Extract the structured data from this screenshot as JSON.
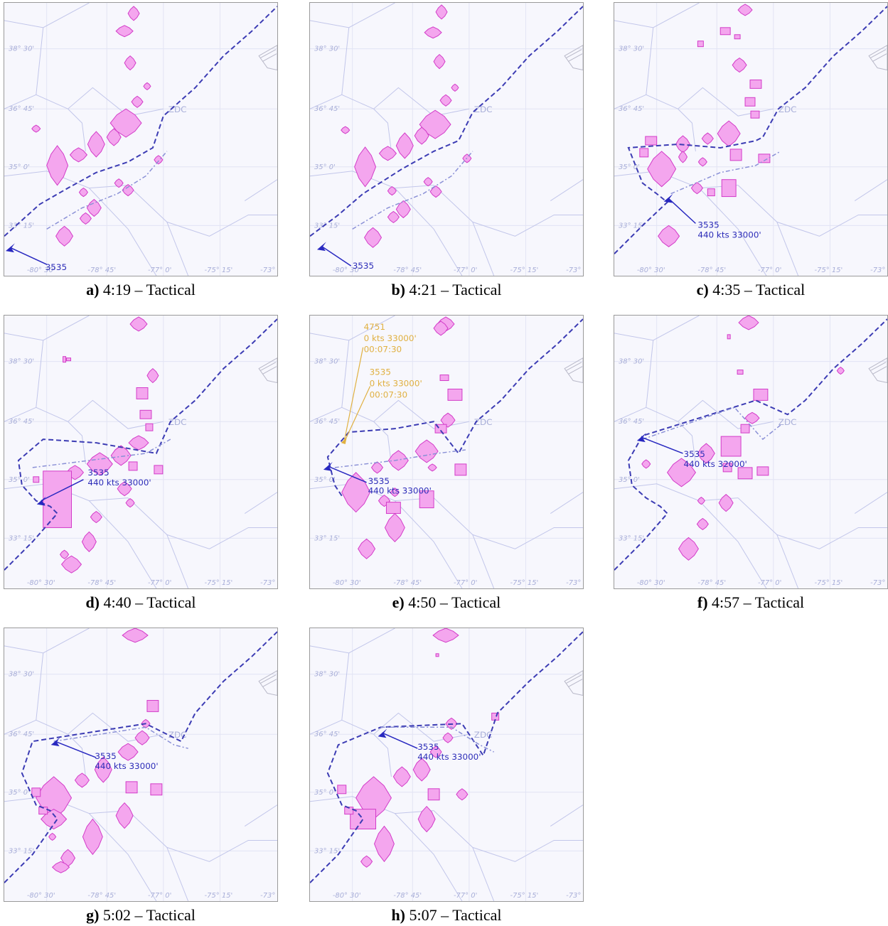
{
  "map_labels": {
    "lat": [
      "38° 30'",
      "36° 45'",
      "35° 0'",
      "33° 15'"
    ],
    "lon": [
      "-80° 30'",
      "-78° 45'",
      "-77° 0'",
      "-75° 15'",
      "-73°"
    ],
    "center": "ZDC"
  },
  "colors": {
    "weather_fill": "#f4a6ee",
    "weather_stroke": "#d23cc8",
    "route": "#3c3cb4",
    "route_light": "#8a90d6",
    "flight": "#2828c0",
    "advisory": "#e0b040",
    "sector_line": "#c2c6ea"
  },
  "panels": [
    {
      "id": "a",
      "letter": "a)",
      "time": "4:19",
      "mode": "Tactical",
      "labels": [
        "3535"
      ],
      "detail": []
    },
    {
      "id": "b",
      "letter": "b)",
      "time": "4:21",
      "mode": "Tactical",
      "labels": [
        "3535"
      ],
      "detail": []
    },
    {
      "id": "c",
      "letter": "c)",
      "time": "4:35",
      "mode": "Tactical",
      "labels": [
        "3535",
        "440 kts 33000'"
      ],
      "detail": []
    },
    {
      "id": "d",
      "letter": "d)",
      "time": "4:40",
      "mode": "Tactical",
      "labels": [
        "3535",
        "440 kts 33000'"
      ],
      "detail": []
    },
    {
      "id": "e",
      "letter": "e)",
      "time": "4:50",
      "mode": "Tactical",
      "labels": [
        "3535",
        "440 kts 33000'"
      ],
      "detail": [
        "4751",
        "0 kts 33000'",
        "00:07:30",
        "3535",
        "0 kts 33000'",
        "00:07:30"
      ]
    },
    {
      "id": "f",
      "letter": "f)",
      "time": "4:57",
      "mode": "Tactical",
      "labels": [
        "3535",
        "440 kts 32000'"
      ],
      "detail": []
    },
    {
      "id": "g",
      "letter": "g)",
      "time": "5:02",
      "mode": "Tactical",
      "labels": [
        "3535",
        "440 kts 33000'"
      ],
      "detail": []
    },
    {
      "id": "h",
      "letter": "h)",
      "time": "5:07",
      "mode": "Tactical",
      "labels": [
        "3535",
        "440 kts 33000'"
      ],
      "detail": []
    }
  ]
}
